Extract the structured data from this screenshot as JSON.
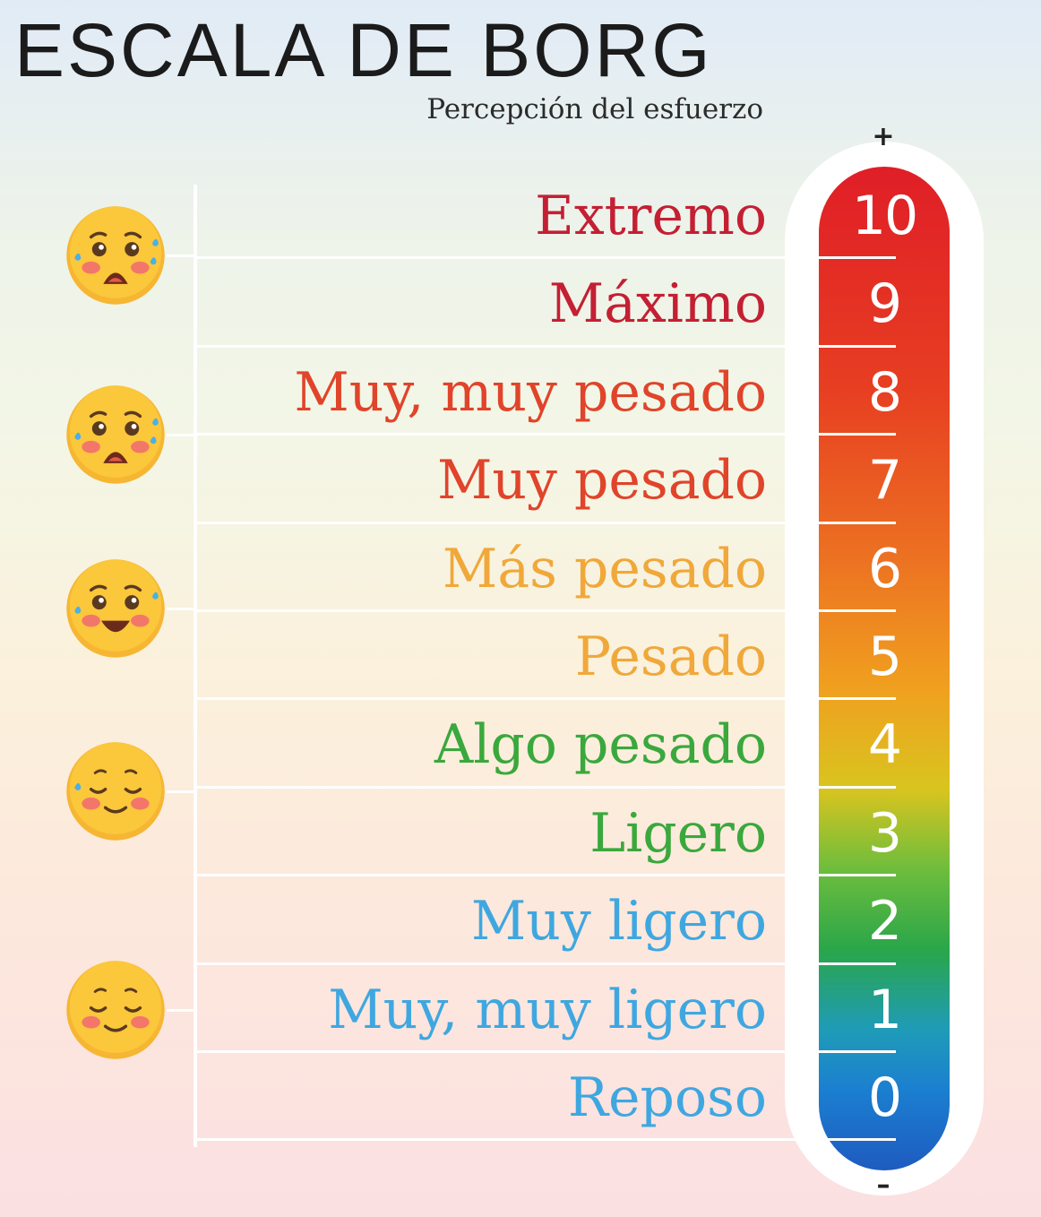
{
  "header": {
    "title": "ESCALA DE BORG",
    "subtitle": "Percepción del esfuerzo"
  },
  "scale_bar": {
    "top_sign": "+",
    "bottom_sign": "–"
  },
  "levels": [
    {
      "value": "10",
      "label": "Extremo",
      "color": "#c41f33"
    },
    {
      "value": "9",
      "label": "Máximo",
      "color": "#c41f33"
    },
    {
      "value": "8",
      "label": "Muy, muy pesado",
      "color": "#e0442a"
    },
    {
      "value": "7",
      "label": "Muy pesado",
      "color": "#e0442a"
    },
    {
      "value": "6",
      "label": "Más pesado",
      "color": "#f0a83a"
    },
    {
      "value": "5",
      "label": "Pesado",
      "color": "#f0a83a"
    },
    {
      "value": "4",
      "label": "Algo pesado",
      "color": "#3aa83d"
    },
    {
      "value": "3",
      "label": "Ligero",
      "color": "#3aa83d"
    },
    {
      "value": "2",
      "label": "Muy ligero",
      "color": "#3fa7e0"
    },
    {
      "value": "1",
      "label": "Muy, muy ligero",
      "color": "#3fa7e0"
    },
    {
      "value": "0",
      "label": "Reposo",
      "color": "#3fa7e0"
    }
  ],
  "faces": [
    {
      "icon": "scared-sweat-face-icon"
    },
    {
      "icon": "scared-sweat-face-icon"
    },
    {
      "icon": "grin-sweat-face-icon"
    },
    {
      "icon": "relieved-sweat-face-icon"
    },
    {
      "icon": "content-face-icon"
    }
  ]
}
